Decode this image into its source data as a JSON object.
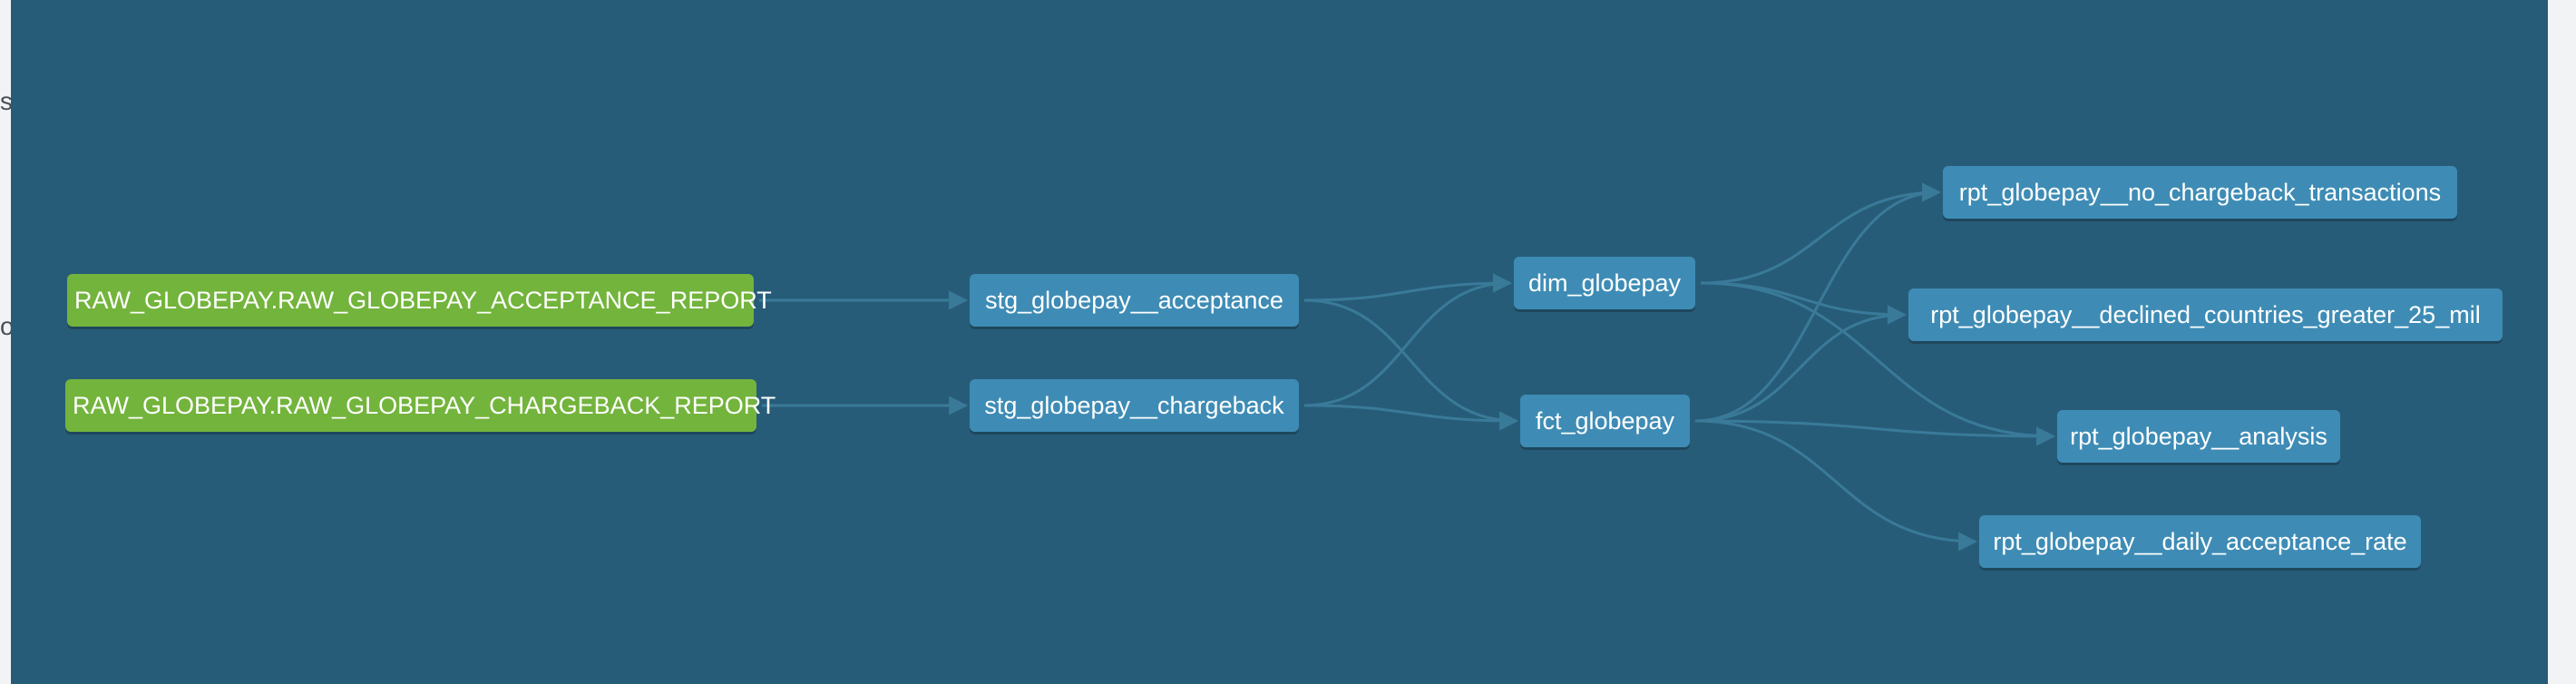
{
  "colors": {
    "canvas_background": "#275c78",
    "model_node": "#3e8cb5",
    "source_node": "#73b43c",
    "edge": "#3a7a99",
    "node_text": "#ffffff"
  },
  "left_strip": {
    "fragment_top": "s",
    "fragment_bottom": "o"
  },
  "nodes": {
    "raw_acceptance": {
      "label": "RAW_GLOBEPAY.RAW_GLOBEPAY_ACCEPTANCE_REPORT",
      "kind": "source"
    },
    "raw_chargeback": {
      "label": "RAW_GLOBEPAY.RAW_GLOBEPAY_CHARGEBACK_REPORT",
      "kind": "source"
    },
    "stg_acceptance": {
      "label": "stg_globepay__acceptance",
      "kind": "model"
    },
    "stg_chargeback": {
      "label": "stg_globepay__chargeback",
      "kind": "model"
    },
    "dim_globepay": {
      "label": "dim_globepay",
      "kind": "model"
    },
    "fct_globepay": {
      "label": "fct_globepay",
      "kind": "model"
    },
    "rpt_no_chargeback": {
      "label": "rpt_globepay__no_chargeback_transactions",
      "kind": "model"
    },
    "rpt_declined": {
      "label": "rpt_globepay__declined_countries_greater_25_mil",
      "kind": "model"
    },
    "rpt_analysis": {
      "label": "rpt_globepay__analysis",
      "kind": "model"
    },
    "rpt_daily": {
      "label": "rpt_globepay__daily_acceptance_rate",
      "kind": "model"
    }
  },
  "edges": [
    [
      "raw_acceptance",
      "stg_acceptance"
    ],
    [
      "raw_chargeback",
      "stg_chargeback"
    ],
    [
      "stg_acceptance",
      "dim_globepay"
    ],
    [
      "stg_acceptance",
      "fct_globepay"
    ],
    [
      "stg_chargeback",
      "dim_globepay"
    ],
    [
      "stg_chargeback",
      "fct_globepay"
    ],
    [
      "dim_globepay",
      "rpt_no_chargeback"
    ],
    [
      "dim_globepay",
      "rpt_declined"
    ],
    [
      "dim_globepay",
      "rpt_analysis"
    ],
    [
      "fct_globepay",
      "rpt_no_chargeback"
    ],
    [
      "fct_globepay",
      "rpt_declined"
    ],
    [
      "fct_globepay",
      "rpt_analysis"
    ],
    [
      "fct_globepay",
      "rpt_daily"
    ]
  ]
}
